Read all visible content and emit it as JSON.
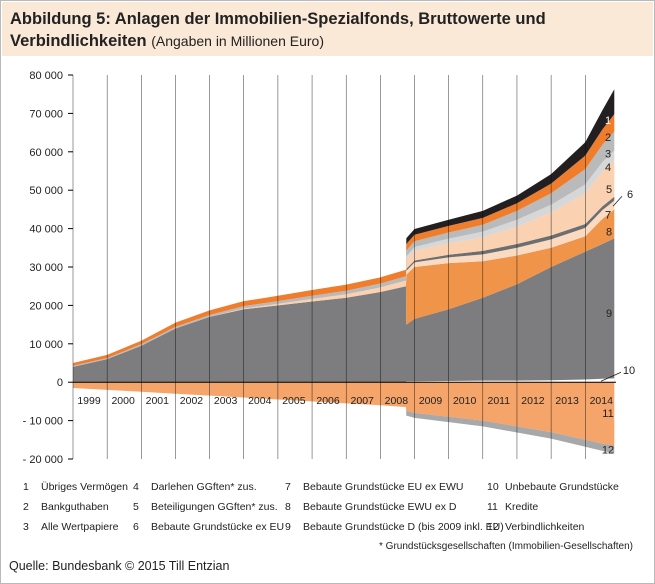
{
  "header": {
    "title": "Abbildung 5: Anlagen der Immobilien-Spezialfonds, Bruttowerte und Verbindlichkeiten",
    "subtitle": "(Angaben in Millionen Euro)"
  },
  "chart_data": {
    "type": "area",
    "title": "Abbildung 5: Anlagen der Immobilien-Spezialfonds, Bruttowerte und Verbindlichkeiten",
    "subtitle": "(Angaben in Millionen Euro)",
    "x_range": [
      1999,
      2014.9
    ],
    "ylim": [
      -20000,
      80000
    ],
    "y_ticks": [
      -20000,
      -10000,
      0,
      10000,
      20000,
      30000,
      40000,
      50000,
      60000,
      70000,
      80000
    ],
    "y_tick_labels": [
      "- 20 000",
      "- 10 000",
      "0",
      "10 000",
      "20 000",
      "30 000",
      "40 000",
      "50 000",
      "60 000",
      "70 000",
      "80 000"
    ],
    "x_ticks": [
      1999,
      2000,
      2001,
      2002,
      2003,
      2004,
      2005,
      2006,
      2007,
      2008,
      2009,
      2010,
      2011,
      2012,
      2013,
      2014
    ],
    "x_tick_labels": [
      "1999",
      "2000",
      "2001",
      "2002",
      "2003",
      "2004",
      "2005",
      "2006",
      "2007",
      "2008",
      "2009",
      "2010",
      "2011",
      "2012",
      "2013",
      "2014"
    ],
    "grid": "vertical-at-years",
    "legend_position": "bottom",
    "x": [
      1999.0,
      2000.0,
      2001.0,
      2002.0,
      2003.0,
      2004.0,
      2005.0,
      2006.0,
      2007.0,
      2008.0,
      2008.75,
      2008.76,
      2009.0,
      2010.0,
      2011.0,
      2012.0,
      2013.0,
      2014.0,
      2014.5,
      2014.85
    ],
    "series_positive": [
      {
        "id": 9,
        "name": "Bebaute Grundstücke D (bis 2009 inkl. EU)",
        "color": "#7d7d7f",
        "values": [
          4000,
          6000,
          9500,
          14000,
          17000,
          19000,
          20000,
          21000,
          22000,
          23500,
          25000,
          15000,
          16500,
          19000,
          22000,
          25500,
          30000,
          34000,
          36000,
          37500
        ]
      },
      {
        "id": 8,
        "name": "Bebaute Grundstücke EWU ex D",
        "color": "#f0944a",
        "values": [
          0,
          0,
          0,
          0,
          0,
          0,
          0,
          0,
          0,
          0,
          0,
          13000,
          13500,
          12000,
          9500,
          7500,
          5000,
          4000,
          6500,
          7500
        ]
      },
      {
        "id": 7,
        "name": "Bebaute Grundstücke EU ex EWU",
        "color": "#fadbc2",
        "values": [
          0,
          0,
          0,
          0,
          0,
          0,
          0,
          0,
          0,
          0,
          0,
          1000,
          1200,
          1500,
          1800,
          2000,
          2200,
          2200,
          2300,
          2300
        ]
      },
      {
        "id": 6,
        "name": "Bebaute Grundstücke ex EU",
        "color": "#6d6e70",
        "values": [
          0,
          0,
          0,
          0,
          0,
          0,
          0,
          0,
          0,
          0,
          0,
          500,
          500,
          700,
          900,
          1000,
          1000,
          1000,
          1000,
          1000
        ]
      },
      {
        "id": 5,
        "name": "Beteiligungen GGften* zus.",
        "color": "#fad1b1",
        "values": [
          0,
          0,
          0,
          0,
          0,
          200,
          400,
          700,
          900,
          1200,
          1500,
          2500,
          2500,
          3000,
          3500,
          4500,
          6000,
          8000,
          9000,
          9500
        ]
      },
      {
        "id": 4,
        "name": "Darlehen GGften* zus.",
        "color": "#d7d7d7",
        "values": [
          0,
          0,
          0,
          0,
          0,
          0,
          0,
          0,
          0,
          0,
          0,
          800,
          1000,
          1200,
          1500,
          1800,
          2000,
          2300,
          2500,
          2500
        ]
      },
      {
        "id": 3,
        "name": "Alle Wertpapiere",
        "color": "#b9babb",
        "values": [
          300,
          300,
          400,
          400,
          500,
          600,
          700,
          800,
          900,
          1000,
          1100,
          1500,
          1500,
          1600,
          1800,
          2300,
          3000,
          4000,
          4500,
          5000
        ]
      },
      {
        "id": 2,
        "name": "Bankguthaben",
        "color": "#ef7d2c",
        "values": [
          700,
          800,
          900,
          1100,
          1200,
          1300,
          1400,
          1500,
          1600,
          1600,
          1700,
          1700,
          1700,
          1700,
          1800,
          2000,
          2500,
          3500,
          4000,
          4500
        ]
      },
      {
        "id": 1,
        "name": "Übriges Vermögen",
        "color": "#231f20",
        "values": [
          0,
          0,
          0,
          0,
          0,
          0,
          0,
          0,
          0,
          0,
          0,
          1500,
          1500,
          1600,
          1800,
          2000,
          2500,
          3500,
          5000,
          6500
        ]
      }
    ],
    "series_other": [
      {
        "id": 10,
        "name": "Unbebaute Grundstücke",
        "color": "#ffffff",
        "values": [
          0,
          0,
          0,
          0,
          0,
          0,
          0,
          0,
          0,
          0,
          0,
          200,
          200,
          300,
          400,
          400,
          500,
          700,
          900,
          1000
        ]
      }
    ],
    "series_negative": [
      {
        "id": 11,
        "name": "Kredite",
        "color": "#f5a46a",
        "values": [
          -1500,
          -2000,
          -2500,
          -3000,
          -3500,
          -4000,
          -4500,
          -5000,
          -5500,
          -6000,
          -6500,
          -7500,
          -8000,
          -9000,
          -10000,
          -11500,
          -13000,
          -15000,
          -16000,
          -16500
        ]
      },
      {
        "id": 12,
        "name": "Verbindlichkeiten",
        "color": "#a7a8aa",
        "values": [
          0,
          0,
          0,
          0,
          0,
          0,
          0,
          0,
          0,
          0,
          0,
          -1200,
          -1300,
          -1400,
          -1500,
          -1600,
          -1700,
          -1800,
          -1900,
          -2000
        ]
      }
    ],
    "legend": [
      {
        "id": "1",
        "label": "Übriges Vermögen"
      },
      {
        "id": "2",
        "label": "Bankguthaben"
      },
      {
        "id": "3",
        "label": "Alle Wertpapiere"
      },
      {
        "id": "4",
        "label": "Darlehen GGften* zus."
      },
      {
        "id": "5",
        "label": "Beteiligungen GGften* zus."
      },
      {
        "id": "6",
        "label": "Bebaute Grundstücke ex EU"
      },
      {
        "id": "7",
        "label": "Bebaute Grundstücke EU ex EWU"
      },
      {
        "id": "8",
        "label": "Bebaute Grundstücke EWU ex D"
      },
      {
        "id": "9",
        "label": "Bebaute Grundstücke D (bis 2009 inkl. EU)"
      },
      {
        "id": "10",
        "label": "Unbebaute Grundstücke"
      },
      {
        "id": "11",
        "label": "Kredite"
      },
      {
        "id": "12",
        "label": "Verbindlichkeiten"
      }
    ],
    "footnote": "* Grundstücksgesellschaften (Immobilien-Gesellschaften)"
  },
  "footer": {
    "source": "Quelle: Bundesbank © 2015 Till Entzian"
  }
}
